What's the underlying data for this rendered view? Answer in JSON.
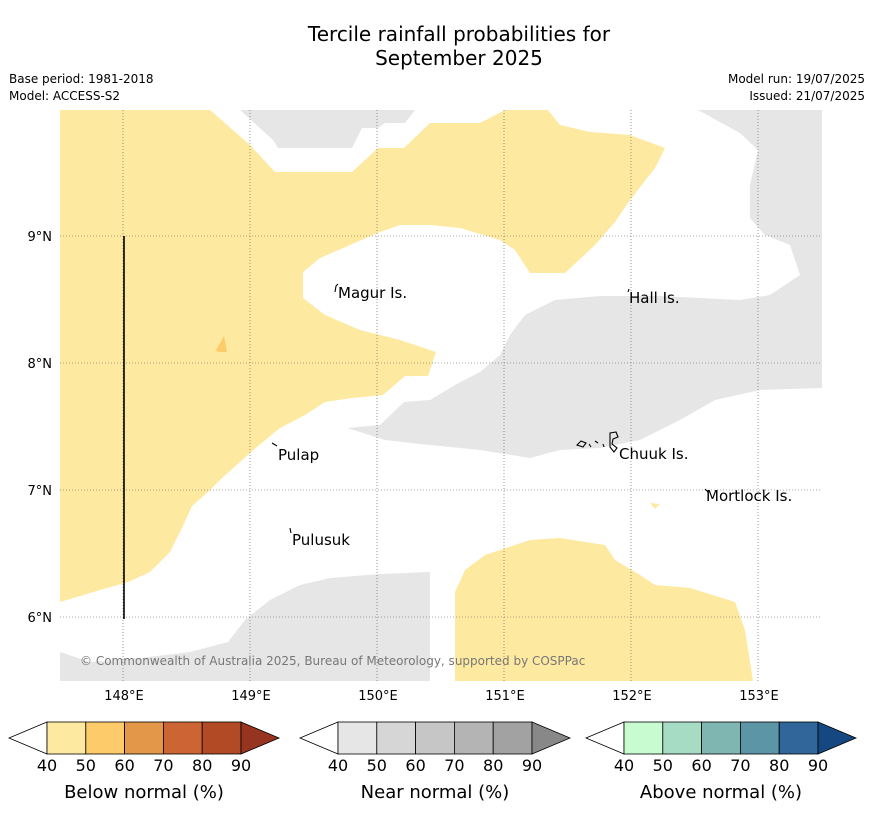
{
  "header": {
    "title_line1": "Tercile rainfall probabilities for",
    "title_line2": "September 2025",
    "base_period": "Base period: 1981-2018",
    "model": "Model: ACCESS-S2",
    "model_run": "Model run: 19/07/2025",
    "issued": "Issued: 21/07/2025"
  },
  "map": {
    "lat_labels": [
      "9°N",
      "8°N",
      "7°N",
      "6°N"
    ],
    "lon_labels": [
      "148°E",
      "149°E",
      "150°E",
      "151°E",
      "152°E",
      "153°E"
    ],
    "places": [
      "Magur Is.",
      "Hall Is.",
      "Pulap",
      "Chuuk Is.",
      "Mortlock Is.",
      "Pulusuk"
    ],
    "copyright": "© Commonwealth of Australia 2025, Bureau of Meteorology, supported by COSPPac",
    "colors": {
      "below_40": "#fee9a0",
      "near_40": "#e6e6e6",
      "land": "#000000"
    }
  },
  "legends": [
    {
      "name": "Below normal (%)",
      "ticks": [
        "40",
        "50",
        "60",
        "70",
        "80",
        "90"
      ],
      "colors": [
        "#ffffff",
        "#fee9a0",
        "#fecb6a",
        "#e29848",
        "#cc6434",
        "#b24a26",
        "#963420"
      ]
    },
    {
      "name": "Near normal (%)",
      "ticks": [
        "40",
        "50",
        "60",
        "70",
        "80",
        "90"
      ],
      "colors": [
        "#ffffff",
        "#e6e6e6",
        "#d6d6d6",
        "#c6c6c6",
        "#b4b4b4",
        "#a2a2a2",
        "#888888"
      ]
    },
    {
      "name": "Above normal (%)",
      "ticks": [
        "40",
        "50",
        "60",
        "70",
        "80",
        "90"
      ],
      "colors": [
        "#ffffff",
        "#c8fcd0",
        "#a6dcc4",
        "#80b6b2",
        "#5c96a6",
        "#30669a",
        "#154880"
      ]
    }
  ]
}
